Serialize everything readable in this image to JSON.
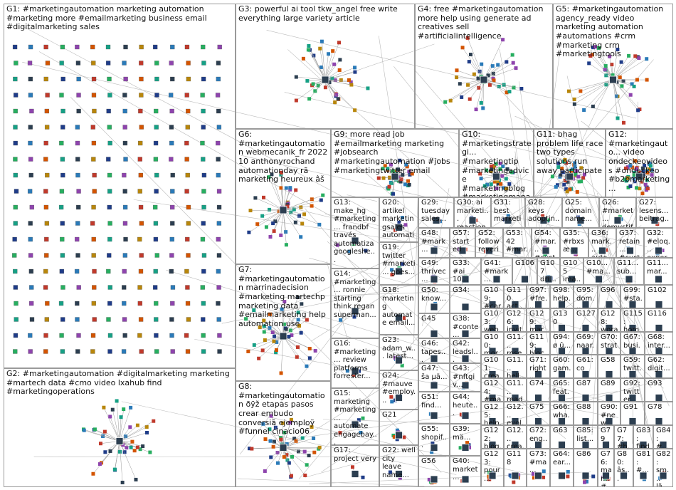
{
  "groups": [
    "G1: #marketingautomation marketing automation #marketing more #emailmarketing business email #digitalmarketing sales",
    "G2: #marketingautomation #digitalmarketing marketing #martech data #cmo video lxahub find #marketingoperations",
    "G3: powerful ai tool tkw_angel free write everything large variety article",
    "G4: free #marketingautomation more help using generate ad creatives sell #artificialintelligence",
    "G5: #marketingautomation agency_ready video marketing automation #automations #crm #marketing crm #marketingtools",
    "G6: #marketingautomation webmecanik_fr 2022 10 anthonyrochand automationday rã marketing heureux âš",
    "G7: #marketingautomation marrinadecision #marketing martechp marketing data #emailmarketing help automation use",
    "G8: #marketingautomation ðÿž etapas pasos crear embudo conversiã ejemploÿ #funnel cinacio06",
    "G9: more read job #emailmarketing marketing #jobsearch #marketingautomation #jobs #marketingtwitter email",
    "G10: #marketingstrategi... #marketingtip #marketingadvice #marketingblog #marketingmanag...",
    "G11: bhag problem life race two types solutions run away participate",
    "G12: #marketingauto... video ondeckeovideos #ondeckeo #b2bmarketing...",
    "G29: tuesday sales...",
    "G30: ai marketi... reaction...",
    "G31: best marketi... anwende...",
    "G28: keys adoptin...",
    "G25: domain name...",
    "G26: #market... demystif...",
    "G27: lesens... beitrag...",
    "G13: make_hg #marketing... frandbf través automatiza googleshe...",
    "G20: artikel marketingsales automati...",
    "G48: #mark...",
    "G57: started",
    "G52: follow reveri...",
    "G53: 42 #mar...",
    "G54: #mar... #cust...",
    "G35: #rbxs æ...",
    "G36: mark... auto...",
    "G37: retain... #cust...",
    "G32: #eloq... exper...",
    "G19: twitter #marketi... goes...",
    "G49: thrivec...",
    "G33: #ai 10...",
    "G41: #mark...",
    "G106",
    "G107 dri...",
    "G105 ima...",
    "G10... #ma...",
    "G11... sub...",
    "G11... mar...",
    "G14: #marketing... ronnie starting think regan superman...",
    "G18: marketing automate email...",
    "G50: know...",
    "G34:",
    "G109: #car...",
    "G110 act...",
    "G97: #fre...",
    "G98: help...",
    "G95: dom...",
    "G96",
    "G99: #sta...",
    "G102",
    "G103: web...",
    "G126: invit...",
    "G129: mar...",
    "G130",
    "G127",
    "G128: wora...",
    "G115: hom...",
    "G116",
    "G45",
    "G38: #conte...",
    "G16: #marketing... review platforms forrester...",
    "G23: adam_w... latest...",
    "G46: tapes...",
    "G42: leadsl...",
    "G100: mor...",
    "G11... rose...",
    "G119: bloc...",
    "G94: ø û...",
    "G69: naar...",
    "G70: strat...",
    "G67: busi...",
    "G68: inter...",
    "G101: crea...",
    "G11... hell...",
    "G71: right...",
    "G60: gam...",
    "G61: co",
    "G58",
    "G59: twitt...",
    "G62: digit...",
    "G24: #mauve #employ...",
    "G47: ša µä...",
    "G43: #nftgiv...",
    "G15: marketing #marketing... automate engagebay...",
    "G124: #ma...",
    "G11... read...",
    "G74",
    "G65: feat...",
    "G87",
    "G89",
    "G92: twitter",
    "G93",
    "G125: help...",
    "G12... evol...",
    "G75",
    "G66: wha...",
    "G88",
    "G90: #new...",
    "G91",
    "G78",
    "G21",
    "G51: find...",
    "G44: heute...",
    "G55: shopif...",
    "G39: mä...",
    "G122: blog...",
    "G12... crea...",
    "G72: eng...",
    "G63",
    "G85: list...",
    "G79",
    "G77: #h...",
    "G83: find...",
    "G84: #...",
    "G17: project very",
    "G22: well city leave name...",
    "G56",
    "G40: market...",
    "G123: pour...",
    "G118",
    "G73: #ma...",
    "G64: ear...",
    "G86",
    "G76: mar... #m...",
    "G80: âs...",
    "G81: #...",
    "G82: sm... lã..."
  ]
}
